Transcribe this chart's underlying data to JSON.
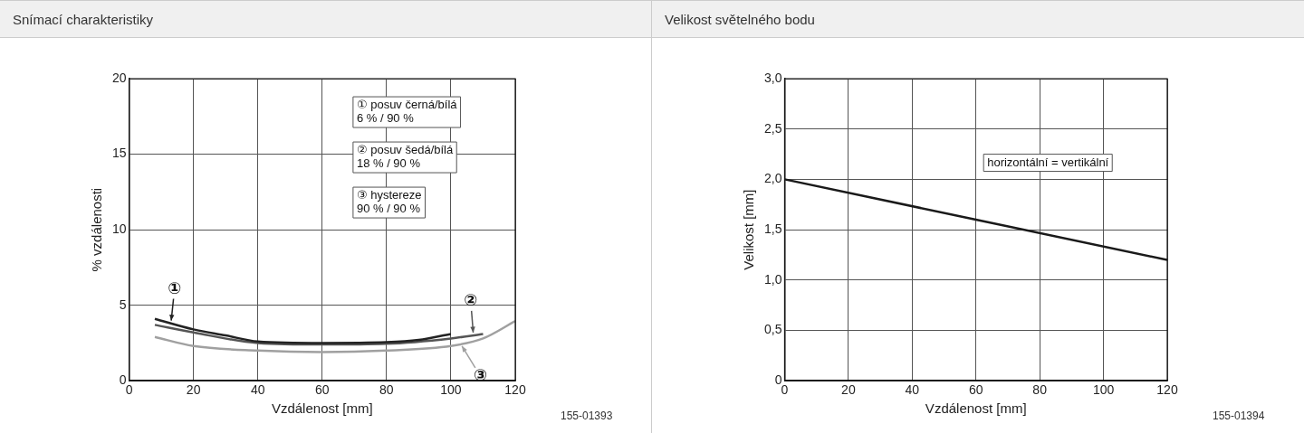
{
  "chart_data": [
    {
      "type": "line",
      "title": "Snímací charakteristiky",
      "xlabel": "Vzdálenost [mm]",
      "ylabel": "% vzdálenosti",
      "xlim": [
        0,
        120
      ],
      "ylim": [
        0,
        20
      ],
      "xticks": [
        0,
        20,
        40,
        60,
        80,
        100,
        120
      ],
      "yticks": [
        0,
        5,
        10,
        15,
        20
      ],
      "grid": true,
      "marker": "none",
      "series": [
        {
          "color": "#222222",
          "x": [
            8,
            20,
            30,
            40,
            60,
            80,
            90,
            100
          ],
          "values": [
            4.1,
            3.4,
            3.0,
            2.6,
            2.5,
            2.55,
            2.7,
            3.1
          ]
        },
        {
          "color": "#555555",
          "x": [
            8,
            20,
            40,
            60,
            80,
            100,
            110
          ],
          "values": [
            3.7,
            3.2,
            2.5,
            2.4,
            2.45,
            2.8,
            3.1
          ]
        },
        {
          "color": "#a0a0a0",
          "x": [
            8,
            20,
            40,
            60,
            80,
            100,
            110,
            120
          ],
          "values": [
            2.9,
            2.3,
            2.0,
            1.9,
            2.0,
            2.3,
            2.8,
            3.95
          ]
        }
      ],
      "annotations": [
        "①",
        "②",
        "③",
        "① posuv černá/bílá\n6 % / 90 %",
        "② posuv šedá/bílá\n18 % / 90 %",
        "③ hystereze\n90 % / 90 %",
        "155-01393"
      ]
    },
    {
      "type": "line",
      "title": "Velikost světelného bodu",
      "xlabel": "Vzdálenost [mm]",
      "ylabel": "Velikost [mm]",
      "xlim": [
        0,
        120
      ],
      "ylim": [
        0,
        3
      ],
      "xticks": [
        0,
        20,
        40,
        60,
        80,
        100,
        120
      ],
      "yticks": [
        {
          "value": 0,
          "label": "0"
        },
        {
          "value": 0.5,
          "label": "0,5"
        },
        {
          "value": 1,
          "label": "1,0"
        },
        {
          "value": 1.5,
          "label": "1,5"
        },
        {
          "value": 2,
          "label": "2,0"
        },
        {
          "value": 2.5,
          "label": "2,5"
        },
        {
          "value": 3,
          "label": "3,0"
        }
      ],
      "grid": true,
      "marker": "none",
      "series": [
        {
          "name": "horizontální = vertikální",
          "color": "#1a1a1a",
          "x": [
            0,
            120
          ],
          "values": [
            2.0,
            1.2
          ]
        }
      ],
      "annotations": [
        "155-01394"
      ]
    }
  ]
}
